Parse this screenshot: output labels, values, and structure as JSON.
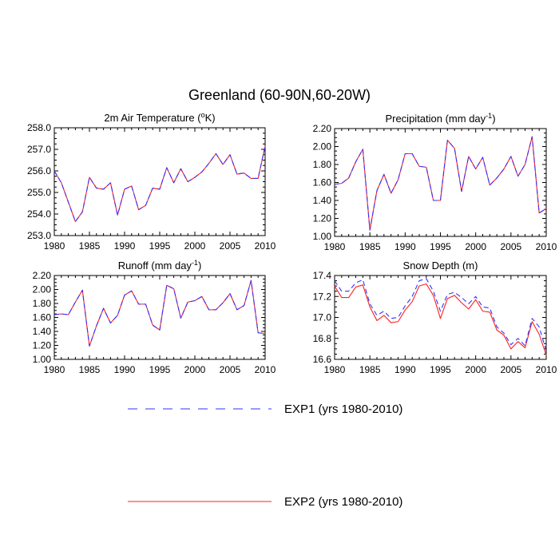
{
  "figure": {
    "title": "Greenland (60-90N,60-20W)"
  },
  "colors": {
    "exp1": "#3333ff",
    "exp2": "#ff2020",
    "axis": "#000000"
  },
  "legend": {
    "items": [
      {
        "label": "EXP1 (yrs 1980-2010)",
        "style": "dashed",
        "color": "#3333ff"
      },
      {
        "label": "EXP2 (yrs 1980-2010)",
        "style": "solid",
        "color": "#ff2020"
      }
    ]
  },
  "chart_data": [
    {
      "type": "line",
      "title": "2m Air Temperature (°K)",
      "title_parts": {
        "pre": "2m Air Temperature (",
        "sup": "o",
        "post": "K)"
      },
      "x": [
        1980,
        1981,
        1982,
        1983,
        1984,
        1985,
        1986,
        1987,
        1988,
        1989,
        1990,
        1991,
        1992,
        1993,
        1994,
        1995,
        1996,
        1997,
        1998,
        1999,
        2000,
        2001,
        2002,
        2003,
        2004,
        2005,
        2006,
        2007,
        2008,
        2009,
        2010
      ],
      "xlim": [
        1980,
        2010
      ],
      "xticks": [
        1980,
        1985,
        1990,
        1995,
        2000,
        2005,
        2010
      ],
      "ylim": [
        253.0,
        258.0
      ],
      "yticks": [
        253.0,
        254.0,
        255.0,
        256.0,
        257.0,
        258.0
      ],
      "ytick_labels": [
        "253.0",
        "254.0",
        "255.0",
        "256.0",
        "257.0",
        "258.0"
      ],
      "series": [
        {
          "name": "EXP1 (yrs 1980-2010)",
          "values": [
            256.0,
            255.45,
            254.55,
            253.65,
            254.1,
            255.7,
            255.2,
            255.15,
            255.45,
            253.95,
            255.15,
            255.3,
            254.2,
            254.4,
            255.2,
            255.15,
            256.15,
            255.45,
            256.1,
            255.5,
            255.7,
            255.95,
            256.35,
            256.8,
            256.3,
            256.75,
            255.85,
            255.9,
            255.65,
            255.65,
            257.15
          ]
        },
        {
          "name": "EXP2 (yrs 1980-2010)",
          "values": [
            256.0,
            255.45,
            254.55,
            253.65,
            254.1,
            255.7,
            255.2,
            255.15,
            255.45,
            253.95,
            255.15,
            255.3,
            254.2,
            254.4,
            255.2,
            255.15,
            256.15,
            255.45,
            256.1,
            255.5,
            255.7,
            255.95,
            256.35,
            256.8,
            256.3,
            256.75,
            255.85,
            255.9,
            255.65,
            255.65,
            257.15
          ]
        }
      ]
    },
    {
      "type": "line",
      "title": "Precipitation (mm day-1)",
      "title_parts": {
        "pre": "Precipitation (mm day",
        "sup": "-1",
        "post": ")"
      },
      "x": [
        1980,
        1981,
        1982,
        1983,
        1984,
        1985,
        1986,
        1987,
        1988,
        1989,
        1990,
        1991,
        1992,
        1993,
        1994,
        1995,
        1996,
        1997,
        1998,
        1999,
        2000,
        2001,
        2002,
        2003,
        2004,
        2005,
        2006,
        2007,
        2008,
        2009,
        2010
      ],
      "xlim": [
        1980,
        2010
      ],
      "xticks": [
        1980,
        1985,
        1990,
        1995,
        2000,
        2005,
        2010
      ],
      "ylim": [
        1.0,
        2.2
      ],
      "yticks": [
        1.0,
        1.2,
        1.4,
        1.6,
        1.8,
        2.0,
        2.2
      ],
      "ytick_labels": [
        "1.00",
        "1.20",
        "1.40",
        "1.60",
        "1.80",
        "2.00",
        "2.20"
      ],
      "series": [
        {
          "name": "EXP1 (yrs 1980-2010)",
          "values": [
            1.58,
            1.59,
            1.65,
            1.83,
            1.97,
            1.07,
            1.51,
            1.69,
            1.48,
            1.63,
            1.92,
            1.92,
            1.78,
            1.77,
            1.4,
            1.4,
            2.07,
            1.98,
            1.5,
            1.89,
            1.75,
            1.88,
            1.57,
            1.65,
            1.75,
            1.89,
            1.67,
            1.8,
            2.11,
            1.26,
            1.31
          ]
        },
        {
          "name": "EXP2 (yrs 1980-2010)",
          "values": [
            1.58,
            1.59,
            1.65,
            1.83,
            1.97,
            1.07,
            1.51,
            1.69,
            1.48,
            1.63,
            1.92,
            1.92,
            1.78,
            1.77,
            1.4,
            1.4,
            2.07,
            1.98,
            1.5,
            1.89,
            1.75,
            1.88,
            1.57,
            1.65,
            1.75,
            1.89,
            1.67,
            1.8,
            2.11,
            1.26,
            1.31
          ]
        }
      ]
    },
    {
      "type": "line",
      "title": "Runoff (mm day-1)",
      "title_parts": {
        "pre": "Runoff (mm day",
        "sup": "-1",
        "post": ")"
      },
      "x": [
        1980,
        1981,
        1982,
        1983,
        1984,
        1985,
        1986,
        1987,
        1988,
        1989,
        1990,
        1991,
        1992,
        1993,
        1994,
        1995,
        1996,
        1997,
        1998,
        1999,
        2000,
        2001,
        2002,
        2003,
        2004,
        2005,
        2006,
        2007,
        2008,
        2009,
        2010
      ],
      "xlim": [
        1980,
        2010
      ],
      "xticks": [
        1980,
        1985,
        1990,
        1995,
        2000,
        2005,
        2010
      ],
      "ylim": [
        1.0,
        2.2
      ],
      "yticks": [
        1.0,
        1.2,
        1.4,
        1.6,
        1.8,
        2.0,
        2.2
      ],
      "ytick_labels": [
        "1.00",
        "1.20",
        "1.40",
        "1.60",
        "1.80",
        "2.00",
        "2.20"
      ],
      "series": [
        {
          "name": "EXP1 (yrs 1980-2010)",
          "values": [
            1.64,
            1.65,
            1.64,
            1.82,
            1.99,
            1.19,
            1.48,
            1.73,
            1.52,
            1.63,
            1.92,
            1.98,
            1.79,
            1.79,
            1.49,
            1.42,
            2.06,
            2.01,
            1.59,
            1.82,
            1.84,
            1.9,
            1.71,
            1.71,
            1.81,
            1.94,
            1.71,
            1.77,
            2.13,
            1.38,
            1.37
          ]
        },
        {
          "name": "EXP2 (yrs 1980-2010)",
          "values": [
            1.64,
            1.65,
            1.64,
            1.82,
            1.99,
            1.19,
            1.48,
            1.73,
            1.52,
            1.63,
            1.92,
            1.98,
            1.79,
            1.79,
            1.49,
            1.42,
            2.06,
            2.01,
            1.59,
            1.82,
            1.84,
            1.9,
            1.71,
            1.71,
            1.81,
            1.94,
            1.71,
            1.77,
            2.13,
            1.38,
            1.37
          ]
        }
      ]
    },
    {
      "type": "line",
      "title": "Snow Depth (m)",
      "title_parts": {
        "pre": "Snow Depth (m)",
        "sup": "",
        "post": ""
      },
      "x": [
        1980,
        1981,
        1982,
        1983,
        1984,
        1985,
        1986,
        1987,
        1988,
        1989,
        1990,
        1991,
        1992,
        1993,
        1994,
        1995,
        1996,
        1997,
        1998,
        1999,
        2000,
        2001,
        2002,
        2003,
        2004,
        2005,
        2006,
        2007,
        2008,
        2009,
        2010
      ],
      "xlim": [
        1980,
        2010
      ],
      "xticks": [
        1980,
        1985,
        1990,
        1995,
        2000,
        2005,
        2010
      ],
      "ylim": [
        16.6,
        17.4
      ],
      "yticks": [
        16.6,
        16.8,
        17.0,
        17.2,
        17.4
      ],
      "ytick_labels": [
        "16.6",
        "16.8",
        "17.0",
        "17.2",
        "17.4"
      ],
      "series": [
        {
          "name": "EXP1 (yrs 1980-2010)",
          "values": [
            17.35,
            17.25,
            17.25,
            17.33,
            17.36,
            17.13,
            17.02,
            17.06,
            16.99,
            17.0,
            17.11,
            17.2,
            17.35,
            17.37,
            17.25,
            17.06,
            17.22,
            17.24,
            17.19,
            17.13,
            17.2,
            17.1,
            17.09,
            16.91,
            16.85,
            16.74,
            16.8,
            16.73,
            16.99,
            16.91,
            16.68
          ]
        },
        {
          "name": "EXP2 (yrs 1980-2010)",
          "values": [
            17.3,
            17.19,
            17.19,
            17.29,
            17.31,
            17.1,
            16.97,
            17.02,
            16.95,
            16.96,
            17.07,
            17.15,
            17.3,
            17.32,
            17.21,
            16.99,
            17.18,
            17.21,
            17.14,
            17.08,
            17.17,
            17.06,
            17.05,
            16.88,
            16.83,
            16.7,
            16.77,
            16.71,
            16.96,
            16.84,
            16.64
          ]
        }
      ]
    }
  ]
}
